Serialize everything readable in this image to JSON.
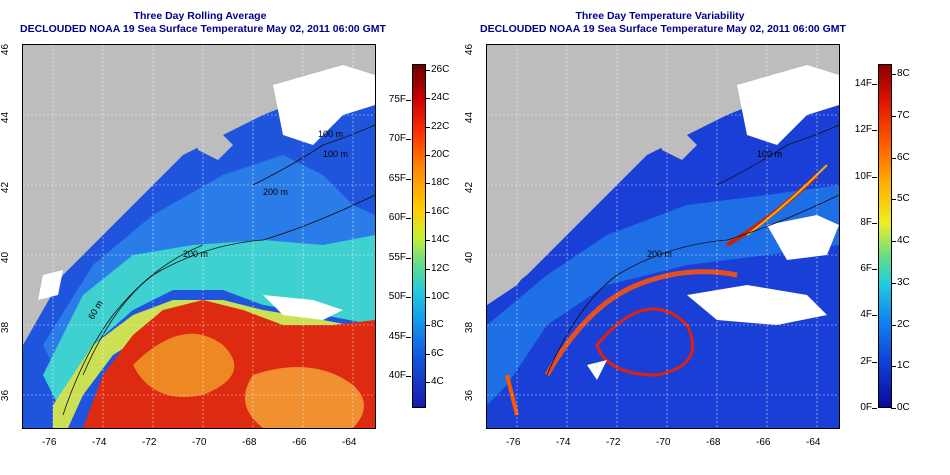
{
  "left": {
    "title_line1": "Three Day Rolling Average",
    "title_line2": "DECLOUDED NOAA 19 Sea Surface Temperature May 02, 2011 06:00 GMT",
    "contours": [
      "100 m",
      "200 m",
      "60 m",
      "100 m",
      "200 m"
    ],
    "colorbar_celsius": [
      "26C",
      "24C",
      "22C",
      "20C",
      "18C",
      "16C",
      "14C",
      "12C",
      "10C",
      "8C",
      "6C",
      "4C"
    ],
    "colorbar_fahrenheit": [
      "75F",
      "70F",
      "65F",
      "60F",
      "55F",
      "50F",
      "45F",
      "40F"
    ]
  },
  "right": {
    "title_line1": "Three Day Temperature Variability",
    "title_line2": "DECLOUDED NOAA 19 Sea Surface Temperature May 02, 2011 06:00 GMT",
    "contours": [
      "100 m",
      "200 m"
    ],
    "colorbar_celsius": [
      "8C",
      "7C",
      "6C",
      "5C",
      "4C",
      "3C",
      "2C",
      "1C",
      "0C"
    ],
    "colorbar_fahrenheit": [
      "14F",
      "12F",
      "10F",
      "8F",
      "6F",
      "4F",
      "2F",
      "0F"
    ]
  },
  "axes": {
    "x_ticks": [
      "-76",
      "-74",
      "-72",
      "-70",
      "-68",
      "-66",
      "-64"
    ],
    "y_ticks": [
      "46",
      "44",
      "42",
      "40",
      "38",
      "36"
    ]
  },
  "colors": {
    "land": "#bdbdbd",
    "title": "#00008b",
    "cold": "#1a33cc",
    "warm": "#cc2200"
  }
}
